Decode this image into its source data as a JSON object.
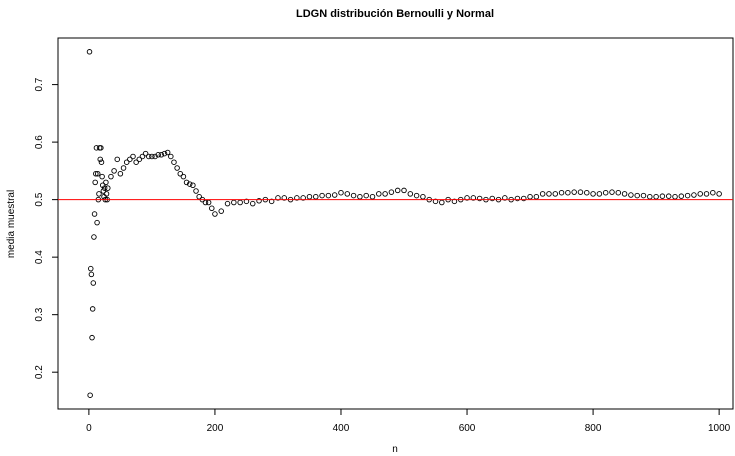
{
  "chart_data": {
    "type": "scatter",
    "title": "LDGN distribución Bernoulli y Normal",
    "xlabel": "n",
    "ylabel": "media muestral",
    "x": [
      1,
      2,
      3,
      4,
      5,
      6,
      7,
      8,
      9,
      10,
      11,
      12,
      13,
      14,
      15,
      16,
      17,
      18,
      19,
      20,
      21,
      22,
      23,
      24,
      25,
      26,
      27,
      28,
      29,
      30,
      35,
      40,
      45,
      50,
      55,
      60,
      65,
      70,
      75,
      80,
      85,
      90,
      95,
      100,
      105,
      110,
      115,
      120,
      125,
      130,
      135,
      140,
      145,
      150,
      155,
      160,
      165,
      170,
      175,
      180,
      185,
      190,
      195,
      200,
      210,
      220,
      230,
      240,
      250,
      260,
      270,
      280,
      290,
      300,
      310,
      320,
      330,
      340,
      350,
      360,
      370,
      380,
      390,
      400,
      410,
      420,
      430,
      440,
      450,
      460,
      470,
      480,
      490,
      500,
      510,
      520,
      530,
      540,
      550,
      560,
      570,
      580,
      590,
      600,
      610,
      620,
      630,
      640,
      650,
      660,
      670,
      680,
      690,
      700,
      710,
      720,
      730,
      740,
      750,
      760,
      770,
      780,
      790,
      800,
      810,
      820,
      830,
      840,
      850,
      860,
      870,
      880,
      890,
      900,
      910,
      920,
      930,
      940,
      950,
      960,
      970,
      980,
      990,
      1000
    ],
    "values": [
      0.757,
      0.16,
      0.38,
      0.37,
      0.26,
      0.31,
      0.355,
      0.435,
      0.475,
      0.53,
      0.545,
      0.59,
      0.46,
      0.545,
      0.5,
      0.51,
      0.59,
      0.57,
      0.59,
      0.565,
      0.54,
      0.525,
      0.515,
      0.505,
      0.52,
      0.5,
      0.53,
      0.51,
      0.5,
      0.52,
      0.54,
      0.55,
      0.57,
      0.545,
      0.555,
      0.565,
      0.57,
      0.575,
      0.565,
      0.57,
      0.575,
      0.58,
      0.575,
      0.575,
      0.575,
      0.578,
      0.578,
      0.58,
      0.582,
      0.575,
      0.565,
      0.555,
      0.545,
      0.54,
      0.53,
      0.527,
      0.525,
      0.515,
      0.505,
      0.5,
      0.495,
      0.495,
      0.485,
      0.475,
      0.48,
      0.493,
      0.495,
      0.495,
      0.497,
      0.493,
      0.498,
      0.5,
      0.497,
      0.503,
      0.503,
      0.5,
      0.503,
      0.503,
      0.505,
      0.505,
      0.507,
      0.507,
      0.508,
      0.512,
      0.51,
      0.507,
      0.505,
      0.507,
      0.505,
      0.51,
      0.51,
      0.513,
      0.516,
      0.516,
      0.51,
      0.507,
      0.505,
      0.5,
      0.497,
      0.495,
      0.5,
      0.497,
      0.5,
      0.503,
      0.503,
      0.502,
      0.5,
      0.502,
      0.5,
      0.503,
      0.5,
      0.502,
      0.502,
      0.505,
      0.505,
      0.51,
      0.51,
      0.51,
      0.512,
      0.512,
      0.513,
      0.513,
      0.512,
      0.51,
      0.51,
      0.512,
      0.513,
      0.512,
      0.51,
      0.508,
      0.507,
      0.507,
      0.505,
      0.505,
      0.506,
      0.506,
      0.505,
      0.506,
      0.507,
      0.508,
      0.51,
      0.51,
      0.512,
      0.51
    ],
    "color": "#000000",
    "reference_line": {
      "value": 0.5,
      "color": "#ff0000"
    },
    "xlim": [
      -49,
      1022
    ],
    "ylim": [
      0.136,
      0.781
    ],
    "xticks": [
      0,
      200,
      400,
      600,
      800,
      1000
    ],
    "yticks": [
      0.2,
      0.3,
      0.4,
      0.5,
      0.6,
      0.7
    ]
  }
}
